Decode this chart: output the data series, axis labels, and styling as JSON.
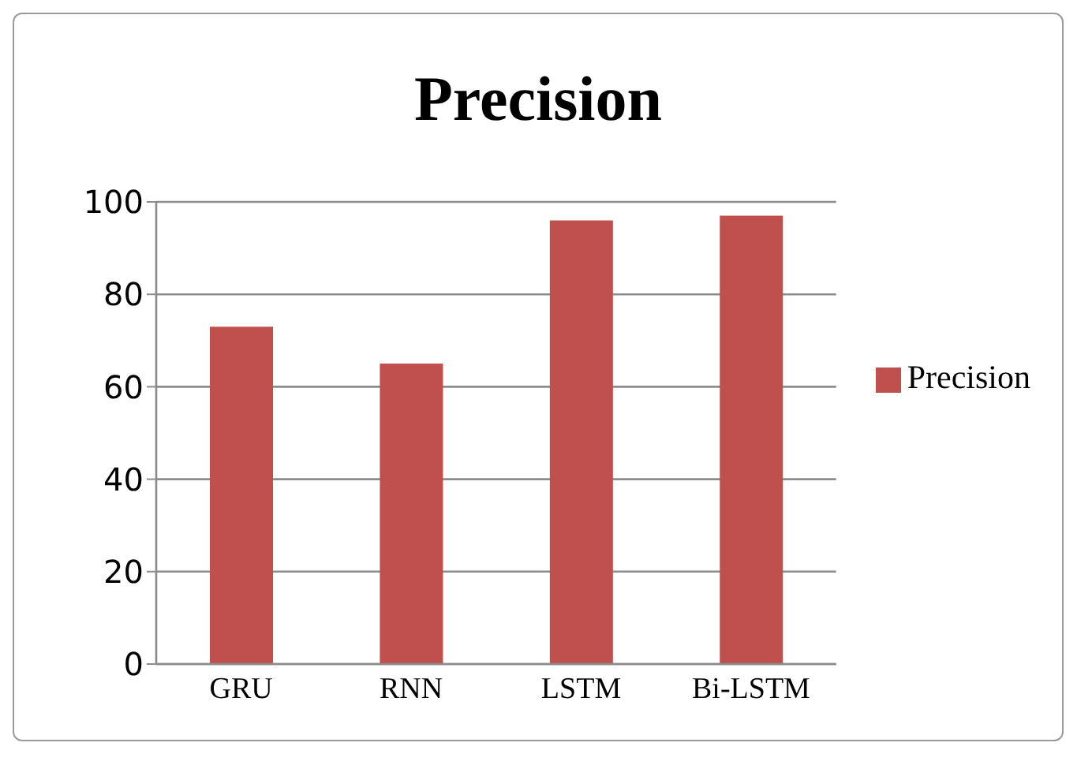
{
  "chart_data": {
    "type": "bar",
    "title": "Precision",
    "categories": [
      "GRU",
      "RNN",
      "LSTM",
      "Bi-LSTM"
    ],
    "series": [
      {
        "name": "Precision",
        "color": "#c0504d",
        "values": [
          73,
          65,
          96,
          97
        ]
      }
    ],
    "ylim": [
      0,
      100
    ],
    "yticks": [
      0,
      20,
      40,
      60,
      80,
      100
    ],
    "grid": "y",
    "legend": "right"
  }
}
